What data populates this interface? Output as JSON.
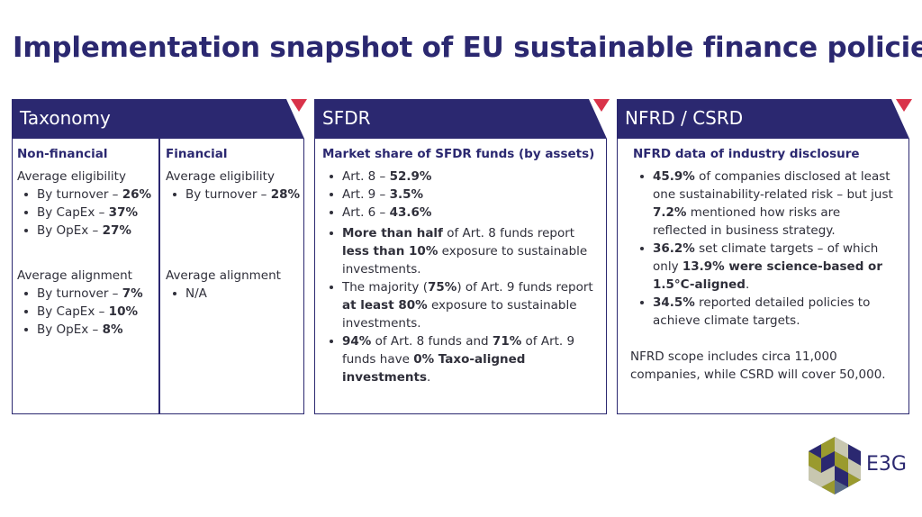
{
  "title": "Implementation snapshot of EU sustainable finance policies",
  "colors": {
    "navy": "#2b2870",
    "accent_red": "#d9334a",
    "olive": "#9a9a2e",
    "slate": "#5b6d88",
    "light": "#c8c7b0"
  },
  "taxonomy": {
    "header": "Taxonomy",
    "nonfinancial": {
      "heading": "Non-financial",
      "eligibility_label": "Average eligibility",
      "eligibility": [
        {
          "label": "By turnover – ",
          "value": "26%"
        },
        {
          "label": "By CapEx – ",
          "value": "37%"
        },
        {
          "label": "By OpEx – ",
          "value": "27%"
        }
      ],
      "alignment_label": "Average alignment",
      "alignment": [
        {
          "label": "By turnover – ",
          "value": "7%"
        },
        {
          "label": "By CapEx – ",
          "value": "10%"
        },
        {
          "label": "By OpEx – ",
          "value": "8%"
        }
      ]
    },
    "financial": {
      "heading": "Financial",
      "eligibility_label": "Average eligibility",
      "eligibility": [
        {
          "label": "By turnover – ",
          "value": "28%"
        }
      ],
      "alignment_label": "Average alignment",
      "alignment": [
        "N/A"
      ]
    }
  },
  "sfdr": {
    "header": "SFDR",
    "heading": "Market share of SFDR funds (by assets)",
    "shares": [
      {
        "label": "Art. 8 – ",
        "value": "52.9%"
      },
      {
        "label": "Art. 9 – ",
        "value": "3.5%"
      },
      {
        "label": "Art. 6 – ",
        "value": "43.6%"
      }
    ],
    "b1": {
      "t1": "More than half",
      "t2": " of Art. 8 funds report ",
      "t3": "less than 10%",
      "t4": " exposure to sustainable investments."
    },
    "b2": {
      "t1": "The majority (",
      "t2": "75%",
      "t3": ") of Art. 9 funds report ",
      "t4": "at least 80%",
      "t5": " exposure to sustainable investments."
    },
    "b3": {
      "t1": "94%",
      "t2": " of Art. 8 funds and ",
      "t3": "71%",
      "t4": " of Art. 9 funds have ",
      "t5": "0% Taxo-aligned investments",
      "t6": "."
    }
  },
  "nfrd": {
    "header": "NFRD / CSRD",
    "heading": "NFRD data of industry disclosure",
    "b1": {
      "t1": "45.9%",
      "t2": " of companies disclosed at least one sustainability-related risk – but just ",
      "t3": "7.2%",
      "t4": " mentioned how risks are reflected in business strategy."
    },
    "b2": {
      "t1": "36.2%",
      "t2": " set climate targets – of which only ",
      "t3": "13.9% were science-based or 1.5°C-aligned",
      "t4": "."
    },
    "b3": {
      "t1": "34.5%",
      "t2": " reported detailed policies to achieve climate targets."
    },
    "note": "NFRD scope includes circa 11,000 companies, while CSRD will cover 50,000."
  },
  "logo": {
    "text": "E3G",
    "icon": "e3g-hexagon-logo-icon"
  }
}
